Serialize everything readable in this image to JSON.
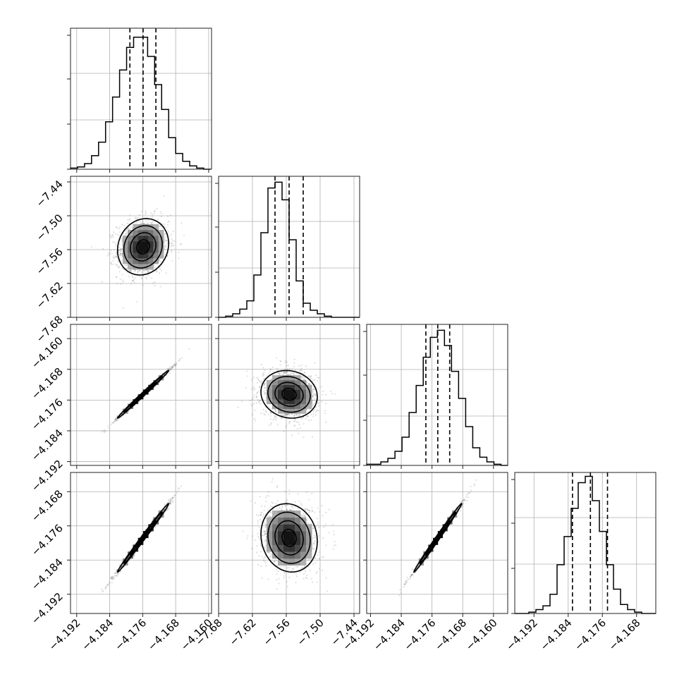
{
  "chart_data": {
    "type": "corner",
    "variables": [
      {
        "ticks": [
          -4.192,
          -4.184,
          -4.176,
          -4.168,
          -4.16
        ],
        "labels": [
          "−4.192",
          "−4.184",
          "−4.176",
          "−4.168",
          "−4.160"
        ],
        "range": [
          -4.1935,
          -4.1593
        ],
        "hist_edges_start": -4.1935,
        "hist_bin_width": 0.0017,
        "hist": [
          1,
          2,
          5,
          12,
          24,
          42,
          64,
          88,
          108,
          117,
          117,
          100,
          75,
          53,
          28,
          14,
          7,
          3,
          1,
          0
        ],
        "hist_max": 125,
        "quantiles": [
          -4.1791,
          -4.1759,
          -4.1728
        ]
      },
      {
        "ticks": [
          -7.68,
          -7.62,
          -7.56,
          -7.5,
          -7.44
        ],
        "labels": [
          "−7.68",
          "−7.62",
          "−7.56",
          "−7.50",
          "−7.44"
        ],
        "range": [
          -7.68,
          -7.43
        ],
        "hist_edges_start": -7.68,
        "hist_bin_width": 0.0125,
        "hist": [
          0,
          1,
          3,
          7,
          14,
          36,
          72,
          110,
          115,
          100,
          66,
          31,
          12,
          6,
          3,
          1,
          0,
          0,
          0,
          0
        ],
        "hist_max": 120,
        "quantiles": [
          -7.58,
          -7.555,
          -7.53
        ]
      },
      {
        "ticks": [
          -4.192,
          -4.184,
          -4.176,
          -4.168,
          -4.16
        ],
        "labels": [
          "−4.192",
          "−4.184",
          "−4.176",
          "−4.168",
          "−4.160"
        ],
        "range": [
          -4.193,
          -4.1563
        ],
        "hist_edges_start": -4.193,
        "hist_bin_width": 0.00184,
        "hist": [
          1,
          1,
          3,
          6,
          12,
          24,
          45,
          68,
          92,
          109,
          115,
          102,
          80,
          57,
          33,
          15,
          7,
          3,
          1,
          0
        ],
        "hist_max": 120,
        "quantiles": [
          -4.1776,
          -4.1745,
          -4.1714
        ]
      },
      {
        "ticks": [
          -4.192,
          -4.184,
          -4.176,
          -4.168
        ],
        "labels": [
          "−4.192",
          "−4.184",
          "−4.176",
          "−4.168"
        ],
        "range": [
          -4.1965,
          -4.1635
        ],
        "hist_edges_start": -4.1965,
        "hist_bin_width": 0.00165,
        "hist": [
          0,
          0,
          1,
          3,
          6,
          15,
          38,
          60,
          82,
          102,
          107,
          88,
          64,
          38,
          19,
          7,
          3,
          1,
          0,
          0
        ],
        "hist_max": 110,
        "quantiles": [
          -4.183,
          -4.1788,
          -4.1748
        ]
      }
    ],
    "pairs": [
      {
        "row": 1,
        "col": 0,
        "mean": [
          -4.1759,
          -7.555
        ],
        "sd": [
          0.0031,
          0.025
        ],
        "rho": 0.12
      },
      {
        "row": 2,
        "col": 0,
        "mean": [
          -4.1759,
          -4.1745
        ],
        "sd": [
          0.0031,
          0.0031
        ],
        "rho": 0.995
      },
      {
        "row": 2,
        "col": 1,
        "mean": [
          -7.555,
          -4.1745
        ],
        "sd": [
          0.025,
          0.0031
        ],
        "rho": -0.1
      },
      {
        "row": 3,
        "col": 0,
        "mean": [
          -4.1759,
          -4.1788
        ],
        "sd": [
          0.0031,
          0.004
        ],
        "rho": 0.995
      },
      {
        "row": 3,
        "col": 1,
        "mean": [
          -7.555,
          -4.1788
        ],
        "sd": [
          0.025,
          0.004
        ],
        "rho": -0.1
      },
      {
        "row": 3,
        "col": 2,
        "mean": [
          -4.1745,
          -4.1788
        ],
        "sd": [
          0.0031,
          0.004
        ],
        "rho": 0.995
      }
    ],
    "contour_levels": [
      0.5,
      1.0,
      1.5,
      2.0
    ],
    "grid": true
  }
}
